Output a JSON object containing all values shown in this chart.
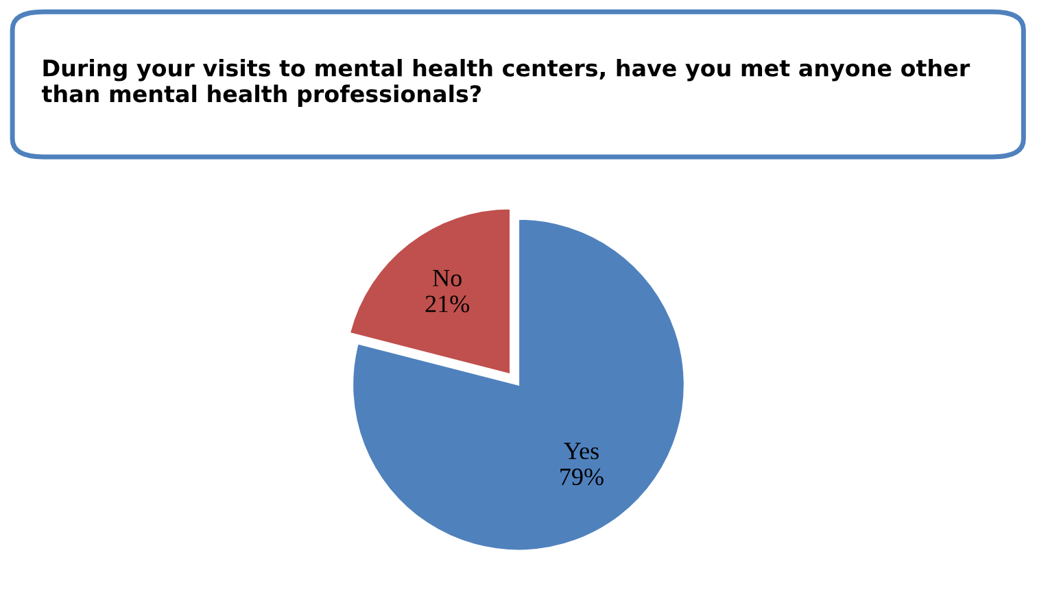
{
  "chart_data": {
    "type": "pie",
    "title": "During your visits to mental health centers, have you met anyone other than mental health professionals?",
    "categories": [
      "Yes",
      "No"
    ],
    "values": [
      79,
      21
    ],
    "colors": [
      "#4f81bd",
      "#c0504d"
    ],
    "value_labels": [
      "79%",
      "21%"
    ]
  }
}
